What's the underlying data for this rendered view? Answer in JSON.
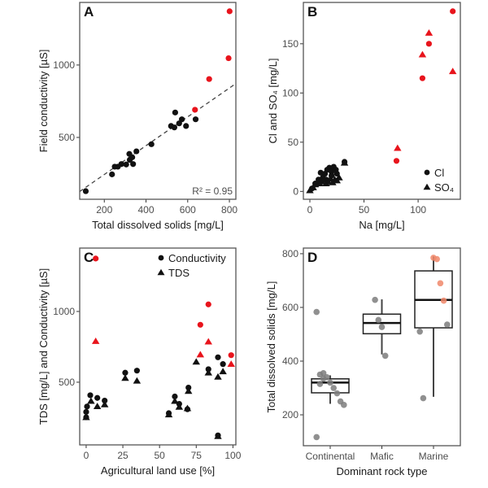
{
  "colors": {
    "black": "#111111",
    "red": "#e8141c",
    "orange": "#f0876a",
    "grey": "#7d7d7d",
    "frame": "#555555"
  },
  "chart_data": [
    {
      "panel": "A",
      "type": "scatter",
      "xlabel": "Total dissolved solids [mg/L]",
      "ylabel": "Field conductivity [µS]",
      "xlim": [
        82,
        831
      ],
      "ylim": [
        73,
        1432
      ],
      "xticks": [
        200,
        400,
        600,
        800
      ],
      "yticks": [
        500,
        1000
      ],
      "grid": false,
      "annotation": "R² = 0.95",
      "fit_line": {
        "slope": 0.995,
        "intercept": 45,
        "style": "dashed"
      },
      "series": [
        {
          "marker": "circle",
          "color": "black",
          "points": [
            [
              111,
              129
            ],
            [
              237,
              245
            ],
            [
              250,
              298
            ],
            [
              265,
              298
            ],
            [
              282,
              316
            ],
            [
              305,
              313
            ],
            [
              322,
              345
            ],
            [
              320,
              386
            ],
            [
              334,
              363
            ],
            [
              338,
              316
            ],
            [
              354,
              404
            ],
            [
              426,
              453
            ],
            [
              520,
              579
            ],
            [
              536,
              569
            ],
            [
              540,
              672
            ],
            [
              559,
              597
            ],
            [
              572,
              625
            ],
            [
              592,
              579
            ],
            [
              638,
              625
            ]
          ]
        },
        {
          "marker": "circle",
          "color": "red",
          "points": [
            [
              635,
              691
            ],
            [
              703,
              903
            ],
            [
              796,
              1047
            ],
            [
              801,
              1371
            ]
          ]
        }
      ]
    },
    {
      "panel": "B",
      "type": "scatter",
      "xlabel": "Na [mg/L]",
      "ylabel": "Cl and SO₄ [mg/L]",
      "xlim": [
        -6,
        139
      ],
      "ylim": [
        -8,
        192
      ],
      "xticks": [
        0,
        50,
        100
      ],
      "yticks": [
        0,
        50,
        100,
        150
      ],
      "grid": false,
      "legend_position": "bottom-right",
      "series": [
        {
          "name": "Cl",
          "marker": "circle",
          "color": "black",
          "points": [
            [
              2,
              3
            ],
            [
              5,
              8
            ],
            [
              8,
              12
            ],
            [
              10,
              19
            ],
            [
              12,
              14
            ],
            [
              14,
              18
            ],
            [
              16,
              22
            ],
            [
              18,
              24
            ],
            [
              20,
              20
            ],
            [
              22,
              25
            ],
            [
              24,
              22
            ],
            [
              20,
              16
            ],
            [
              15,
              12
            ],
            [
              25,
              18
            ],
            [
              32,
              30
            ]
          ]
        },
        {
          "name": "SO₄",
          "marker": "triangle",
          "color": "black",
          "points": [
            [
              0,
              1
            ],
            [
              3,
              4
            ],
            [
              5,
              7
            ],
            [
              7,
              9
            ],
            [
              9,
              8
            ],
            [
              11,
              10
            ],
            [
              13,
              12
            ],
            [
              15,
              8
            ],
            [
              17,
              10
            ],
            [
              19,
              13
            ],
            [
              21,
              9
            ],
            [
              23,
              12
            ],
            [
              25,
              11
            ],
            [
              27,
              14
            ],
            [
              32,
              29
            ]
          ]
        },
        {
          "marker": "circle",
          "color": "red",
          "points": [
            [
              80,
              31
            ],
            [
              104,
              115
            ],
            [
              110,
              150
            ],
            [
              132,
              183
            ]
          ]
        },
        {
          "marker": "triangle",
          "color": "red",
          "points": [
            [
              81,
              44
            ],
            [
              104,
              139
            ],
            [
              110,
              161
            ],
            [
              132,
              122
            ]
          ]
        }
      ],
      "legend": [
        {
          "label": "Cl",
          "marker": "circle"
        },
        {
          "label": "SO₄",
          "marker": "triangle"
        }
      ]
    },
    {
      "panel": "C",
      "type": "scatter",
      "xlabel": "Agricultural land use [%]",
      "ylabel": "TDS [mg/L] and Conductivity [µS]",
      "xlim": [
        -4.4,
        102
      ],
      "ylim": [
        57,
        1448
      ],
      "xticks": [
        0,
        25,
        50,
        75,
        100
      ],
      "yticks": [
        500,
        1000
      ],
      "grid": false,
      "legend_position": "top-right",
      "series": [
        {
          "name": "Conductivity",
          "marker": "circle",
          "color": "black",
          "points": [
            [
              0,
              290
            ],
            [
              0.6,
              328
            ],
            [
              0,
              252
            ],
            [
              2.8,
              408
            ],
            [
              7.6,
              389
            ],
            [
              12.6,
              370
            ],
            [
              26.6,
              567
            ],
            [
              34.6,
              582
            ],
            [
              56.3,
              281
            ],
            [
              60.4,
              399
            ],
            [
              63.4,
              347
            ],
            [
              69,
              309
            ],
            [
              69.7,
              462
            ],
            [
              83.3,
              592
            ],
            [
              89.8,
              676
            ],
            [
              93.2,
              628
            ],
            [
              89.8,
              124
            ]
          ]
        },
        {
          "name": "TDS",
          "marker": "triangle",
          "color": "black",
          "points": [
            [
              0,
              252
            ],
            [
              3.3,
              367
            ],
            [
              7.6,
              329
            ],
            [
              12.6,
              342
            ],
            [
              26.6,
              529
            ],
            [
              34.6,
              510
            ],
            [
              56.3,
              271
            ],
            [
              60.4,
              367
            ],
            [
              63.4,
              325
            ],
            [
              69,
              315
            ],
            [
              69.7,
              437
            ],
            [
              75,
              644
            ],
            [
              83.3,
              567
            ],
            [
              89.8,
              538
            ],
            [
              93.2,
              576
            ],
            [
              89.8,
              118
            ]
          ]
        },
        {
          "marker": "circle",
          "color": "red",
          "points": [
            [
              6.5,
              1374
            ],
            [
              77.8,
              906
            ],
            [
              83.3,
              1050
            ],
            [
              98.8,
              691
            ]
          ]
        },
        {
          "marker": "triangle",
          "color": "red",
          "points": [
            [
              6.5,
              790
            ],
            [
              77.8,
              695
            ],
            [
              83.3,
              786
            ],
            [
              98.8,
              628
            ]
          ]
        }
      ],
      "legend": [
        {
          "label": "Conductivity",
          "marker": "circle"
        },
        {
          "label": "TDS",
          "marker": "triangle"
        }
      ]
    },
    {
      "panel": "D",
      "type": "box",
      "xlabel": "Dominant rock type",
      "ylabel": "Total dissolved solids [mg/L]",
      "ylim": [
        85,
        821
      ],
      "yticks": [
        200,
        400,
        600,
        800
      ],
      "grid": false,
      "categories": [
        "Continental",
        "Mafic",
        "Marine"
      ],
      "boxes": [
        {
          "q1": 282,
          "median": 320,
          "q3": 334,
          "whisker_low": 241,
          "whisker_high": 347
        },
        {
          "q1": 502,
          "median": 542,
          "q3": 575,
          "whisker_low": 425,
          "whisker_high": 630
        },
        {
          "q1": 524,
          "median": 628,
          "q3": 736,
          "whisker_low": 267,
          "whisker_high": 790
        }
      ],
      "points": [
        [
          {
            "v": 583,
            "c": "grey"
          },
          {
            "v": 350,
            "c": "grey"
          },
          {
            "v": 355,
            "c": "grey"
          },
          {
            "v": 340,
            "c": "grey"
          },
          {
            "v": 320,
            "c": "grey"
          },
          {
            "v": 300,
            "c": "grey"
          },
          {
            "v": 280,
            "c": "grey"
          },
          {
            "v": 250,
            "c": "grey"
          },
          {
            "v": 237,
            "c": "grey"
          },
          {
            "v": 117,
            "c": "grey"
          },
          {
            "v": 315,
            "c": "grey"
          },
          {
            "v": 335,
            "c": "grey"
          }
        ],
        [
          {
            "v": 628,
            "c": "grey"
          },
          {
            "v": 553,
            "c": "grey"
          },
          {
            "v": 527,
            "c": "grey"
          },
          {
            "v": 420,
            "c": "grey"
          }
        ],
        [
          {
            "v": 785,
            "c": "orange"
          },
          {
            "v": 780,
            "c": "orange"
          },
          {
            "v": 690,
            "c": "orange"
          },
          {
            "v": 625,
            "c": "orange"
          },
          {
            "v": 536,
            "c": "grey"
          },
          {
            "v": 510,
            "c": "grey"
          },
          {
            "v": 262,
            "c": "grey"
          }
        ]
      ]
    }
  ]
}
